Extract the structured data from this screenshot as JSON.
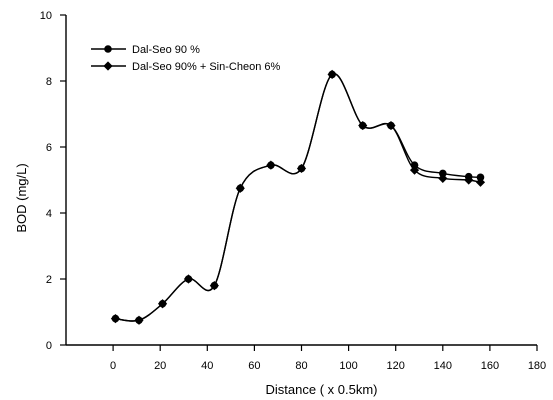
{
  "chart_data": {
    "type": "line",
    "xlabel": "Distance ( x 0.5km)",
    "ylabel": "BOD (mg/L)",
    "xlim": [
      -20,
      180
    ],
    "ylim": [
      0,
      10
    ],
    "x_ticks": [
      0,
      20,
      40,
      60,
      80,
      100,
      120,
      140,
      160,
      180
    ],
    "y_ticks": [
      0,
      2,
      4,
      6,
      8,
      10
    ],
    "grid": false,
    "legend_position": "top-left",
    "series": [
      {
        "name": "Dal-Seo 90 %",
        "marker": "circle",
        "color": "#000000",
        "x": [
          1,
          11,
          21,
          32,
          43,
          54,
          67,
          80,
          93,
          106,
          118,
          128,
          140,
          151,
          156
        ],
        "y": [
          0.8,
          0.75,
          1.25,
          2.0,
          1.8,
          4.75,
          5.45,
          5.35,
          8.2,
          6.65,
          6.65,
          5.45,
          5.2,
          5.1,
          5.08
        ]
      },
      {
        "name": "Dal-Seo 90% + Sin-Cheon 6%",
        "marker": "diamond",
        "color": "#000000",
        "x": [
          1,
          11,
          21,
          32,
          43,
          54,
          67,
          80,
          93,
          106,
          118,
          128,
          140,
          151,
          156
        ],
        "y": [
          0.8,
          0.75,
          1.25,
          2.0,
          1.8,
          4.75,
          5.45,
          5.35,
          8.2,
          6.65,
          6.65,
          5.3,
          5.05,
          5.0,
          4.93
        ]
      }
    ]
  }
}
